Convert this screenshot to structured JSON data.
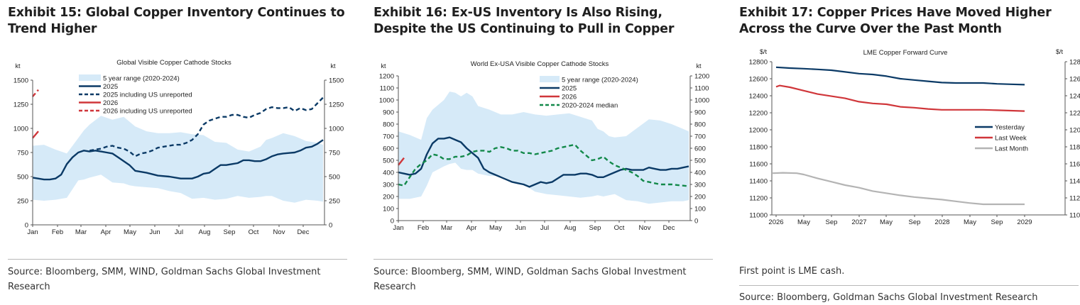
{
  "exhibits": [
    {
      "title": "Exhibit 15: Global Copper Inventory Continues to Trend Higher",
      "source": "Source: Bloomberg, SMM, WIND, Goldman Sachs Global Investment Research"
    },
    {
      "title": "Exhibit 16: Ex-US Inventory Is Also Rising, Despite the US Continuing to Pull in Copper",
      "source": "Source: Bloomberg, SMM, WIND, Goldman Sachs Global Investment Research"
    },
    {
      "title": "Exhibit 17: Copper Prices Have Moved Higher Across the Curve Over the Past Month",
      "note": "First point is LME cash.",
      "source": "Source: Bloomberg, Goldman Sachs Global Investment Research"
    }
  ],
  "colors": {
    "range_fill": "#d6eaf8",
    "navy": "#0b3a66",
    "red": "#d0363a",
    "green": "#13894a",
    "gray": "#b4b4b4",
    "axis": "#555555"
  },
  "chart_data": [
    {
      "type": "line",
      "title": "Global Visible Copper Cathode Stocks",
      "ylabel_left": "kt",
      "ylabel_right": "kt",
      "ylim": [
        0,
        1500
      ],
      "yticks": [
        0,
        250,
        500,
        750,
        1000,
        1250,
        1500
      ],
      "xticks": [
        "Jan",
        "Feb",
        "Mar",
        "Apr",
        "May",
        "Jun",
        "Jul",
        "Aug",
        "Sep",
        "Oct",
        "Nov",
        "Dec"
      ],
      "x_unit": "week_index_0_to_51",
      "legend_position": "top-left",
      "legend": [
        "5 year range (2020-2024)",
        "2025",
        "2025 including US unreported",
        "2026",
        "2026 including US unreported"
      ],
      "range": {
        "name": "5 year range (2020-2024)",
        "x": [
          0,
          2,
          4,
          6,
          8,
          9,
          10,
          12,
          14,
          16,
          17,
          18,
          20,
          22,
          24,
          26,
          28,
          30,
          32,
          34,
          36,
          38,
          40,
          41,
          42,
          44,
          46,
          48,
          50,
          51
        ],
        "upper": [
          820,
          830,
          780,
          740,
          900,
          980,
          1040,
          1130,
          1090,
          1120,
          1070,
          1020,
          970,
          950,
          950,
          960,
          940,
          930,
          860,
          850,
          780,
          760,
          810,
          880,
          900,
          950,
          920,
          870,
          850,
          830
        ],
        "lower": [
          260,
          250,
          260,
          280,
          460,
          470,
          490,
          520,
          440,
          430,
          410,
          400,
          390,
          380,
          350,
          330,
          270,
          280,
          260,
          270,
          300,
          280,
          290,
          300,
          300,
          250,
          230,
          260,
          250,
          240
        ]
      },
      "series": [
        {
          "name": "2025",
          "style": "solid",
          "x": [
            0,
            2,
            3,
            4,
            5,
            6,
            7,
            8,
            9,
            10,
            11,
            12,
            13,
            14,
            15,
            16,
            17,
            18,
            19,
            20,
            22,
            24,
            26,
            28,
            29,
            30,
            31,
            32,
            33,
            34,
            35,
            36,
            37,
            38,
            39,
            40,
            41,
            42,
            43,
            44,
            45,
            46,
            47,
            48,
            49,
            50,
            51
          ],
          "values": [
            490,
            470,
            470,
            480,
            520,
            630,
            700,
            750,
            770,
            760,
            770,
            760,
            750,
            740,
            700,
            660,
            620,
            560,
            550,
            540,
            510,
            500,
            480,
            480,
            500,
            530,
            540,
            580,
            620,
            620,
            630,
            640,
            670,
            670,
            660,
            660,
            680,
            710,
            730,
            740,
            745,
            750,
            770,
            800,
            810,
            840,
            880
          ]
        },
        {
          "name": "2025 including US unreported",
          "style": "dashed",
          "x": [
            10,
            11,
            12,
            13,
            14,
            15,
            16,
            17,
            18,
            19,
            20,
            21,
            22,
            23,
            24,
            25,
            26,
            27,
            28,
            29,
            30,
            31,
            32,
            33,
            34,
            35,
            36,
            37,
            38,
            39,
            40,
            41,
            42,
            43,
            44,
            45,
            46,
            47,
            48,
            49,
            50,
            51
          ],
          "values": [
            770,
            780,
            790,
            810,
            820,
            800,
            790,
            760,
            710,
            740,
            750,
            770,
            800,
            810,
            820,
            830,
            830,
            850,
            880,
            940,
            1040,
            1080,
            1100,
            1120,
            1120,
            1140,
            1140,
            1120,
            1110,
            1140,
            1160,
            1200,
            1220,
            1210,
            1210,
            1220,
            1180,
            1210,
            1190,
            1200,
            1260,
            1320
          ]
        },
        {
          "name": "2026",
          "style": "solid",
          "x": [
            0,
            1
          ],
          "values": [
            900,
            970
          ]
        },
        {
          "name": "2026 including US unreported",
          "style": "dashed",
          "x": [
            0,
            1
          ],
          "values": [
            1330,
            1400
          ]
        }
      ]
    },
    {
      "type": "line",
      "title": "World Ex-USA Visible Copper Cathode Stocks",
      "ylabel_left": "kt",
      "ylabel_right": "kt",
      "ylim": [
        0,
        1200
      ],
      "yticks": [
        0,
        100,
        200,
        300,
        400,
        500,
        600,
        700,
        800,
        900,
        1000,
        1100,
        1200
      ],
      "xticks": [
        "Jan",
        "Feb",
        "Mar",
        "Apr",
        "May",
        "Jun",
        "Jul",
        "Aug",
        "Sep",
        "Oct",
        "Nov",
        "Dec"
      ],
      "x_unit": "week_index_0_to_51",
      "legend_position": "top-center",
      "legend": [
        "5 year range (2020-2024)",
        "2025",
        "2026",
        "2020-2024 median"
      ],
      "range": {
        "name": "5 year range (2020-2024)",
        "x": [
          0,
          2,
          4,
          5,
          6,
          8,
          9,
          10,
          11,
          12,
          13,
          14,
          16,
          18,
          20,
          22,
          24,
          26,
          28,
          30,
          32,
          34,
          35,
          36,
          37,
          38,
          40,
          42,
          44,
          46,
          48,
          50,
          51
        ],
        "upper": [
          740,
          710,
          670,
          850,
          920,
          1000,
          1070,
          1060,
          1030,
          1060,
          1030,
          950,
          920,
          880,
          880,
          900,
          880,
          870,
          880,
          890,
          860,
          830,
          760,
          740,
          700,
          690,
          700,
          770,
          840,
          830,
          800,
          760,
          740
        ],
        "lower": [
          180,
          180,
          200,
          290,
          400,
          450,
          470,
          480,
          430,
          420,
          420,
          390,
          370,
          370,
          330,
          300,
          240,
          220,
          210,
          200,
          190,
          200,
          210,
          200,
          210,
          220,
          170,
          160,
          140,
          150,
          160,
          160,
          170
        ]
      },
      "series": [
        {
          "name": "2025",
          "style": "solid",
          "x": [
            0,
            1,
            2,
            3,
            4,
            5,
            6,
            7,
            8,
            9,
            10,
            11,
            12,
            13,
            14,
            15,
            16,
            17,
            18,
            19,
            20,
            21,
            22,
            23,
            24,
            25,
            26,
            27,
            28,
            29,
            30,
            31,
            32,
            33,
            34,
            35,
            36,
            37,
            38,
            39,
            40,
            41,
            42,
            43,
            44,
            45,
            46,
            47,
            48,
            49,
            50,
            51
          ],
          "values": [
            400,
            390,
            380,
            390,
            430,
            550,
            640,
            680,
            680,
            690,
            670,
            650,
            600,
            560,
            520,
            430,
            400,
            380,
            360,
            340,
            320,
            310,
            300,
            280,
            300,
            320,
            310,
            320,
            350,
            380,
            380,
            380,
            390,
            390,
            380,
            360,
            360,
            380,
            400,
            420,
            430,
            420,
            420,
            420,
            440,
            430,
            420,
            420,
            430,
            430,
            440,
            450
          ]
        },
        {
          "name": "2026",
          "style": "solid",
          "x": [
            0,
            1
          ],
          "values": [
            460,
            520
          ]
        },
        {
          "name": "2020-2024 median",
          "style": "dashed",
          "x": [
            0,
            1,
            2,
            3,
            4,
            5,
            6,
            7,
            8,
            9,
            10,
            11,
            12,
            13,
            14,
            15,
            16,
            17,
            18,
            19,
            20,
            21,
            22,
            23,
            24,
            25,
            26,
            27,
            28,
            29,
            30,
            31,
            32,
            33,
            34,
            35,
            36,
            37,
            38,
            39,
            40,
            41,
            42,
            43,
            44,
            45,
            46,
            47,
            48,
            49,
            50,
            51
          ],
          "values": [
            300,
            290,
            360,
            430,
            470,
            500,
            550,
            540,
            510,
            510,
            530,
            530,
            540,
            570,
            580,
            580,
            570,
            600,
            610,
            600,
            580,
            580,
            560,
            560,
            550,
            560,
            570,
            580,
            600,
            610,
            620,
            630,
            580,
            540,
            500,
            510,
            530,
            490,
            460,
            440,
            420,
            400,
            370,
            330,
            320,
            310,
            300,
            300,
            300,
            295,
            290,
            285
          ]
        }
      ]
    },
    {
      "type": "line",
      "title": "LME Copper Forward Curve",
      "ylabel_left": "$/t",
      "ylabel_right": "$/t",
      "ylim": [
        11000,
        12800
      ],
      "yticks": [
        11000,
        11200,
        11400,
        11600,
        11800,
        12000,
        12200,
        12400,
        12600,
        12800
      ],
      "xticks": [
        "2026",
        "May",
        "Sep",
        "2027",
        "May",
        "Sep",
        "2028",
        "May",
        "Sep",
        "2029"
      ],
      "x_unit": "months_from_jan_2026",
      "xlim": [
        -0.5,
        39.5
      ],
      "legend_position": "center-right",
      "legend": [
        "Yesterday",
        "Last Week",
        "Last Month"
      ],
      "series": [
        {
          "name": "Yesterday",
          "x": [
            0,
            2,
            4,
            6,
            8,
            10,
            12,
            14,
            16,
            18,
            20,
            22,
            24,
            26,
            28,
            30,
            32,
            34,
            36
          ],
          "values": [
            12735,
            12725,
            12718,
            12710,
            12700,
            12680,
            12660,
            12650,
            12630,
            12600,
            12585,
            12570,
            12555,
            12550,
            12550,
            12550,
            12540,
            12535,
            12530
          ]
        },
        {
          "name": "Last Week",
          "x": [
            0,
            0.5,
            2,
            4,
            6,
            8,
            10,
            12,
            14,
            16,
            18,
            20,
            22,
            24,
            26,
            28,
            30,
            32,
            34,
            36
          ],
          "values": [
            12505,
            12520,
            12500,
            12460,
            12420,
            12395,
            12370,
            12330,
            12310,
            12300,
            12270,
            12260,
            12245,
            12235,
            12235,
            12235,
            12235,
            12230,
            12225,
            12220
          ]
        },
        {
          "name": "Last Month",
          "x": [
            -0.5,
            1,
            3,
            4,
            6,
            8,
            10,
            12,
            14,
            16,
            18,
            20,
            22,
            24,
            26,
            28,
            30,
            32,
            34,
            36
          ],
          "values": [
            11490,
            11495,
            11490,
            11475,
            11430,
            11390,
            11350,
            11320,
            11280,
            11255,
            11230,
            11210,
            11195,
            11180,
            11160,
            11140,
            11125,
            11125,
            11125,
            11125
          ]
        }
      ]
    }
  ]
}
